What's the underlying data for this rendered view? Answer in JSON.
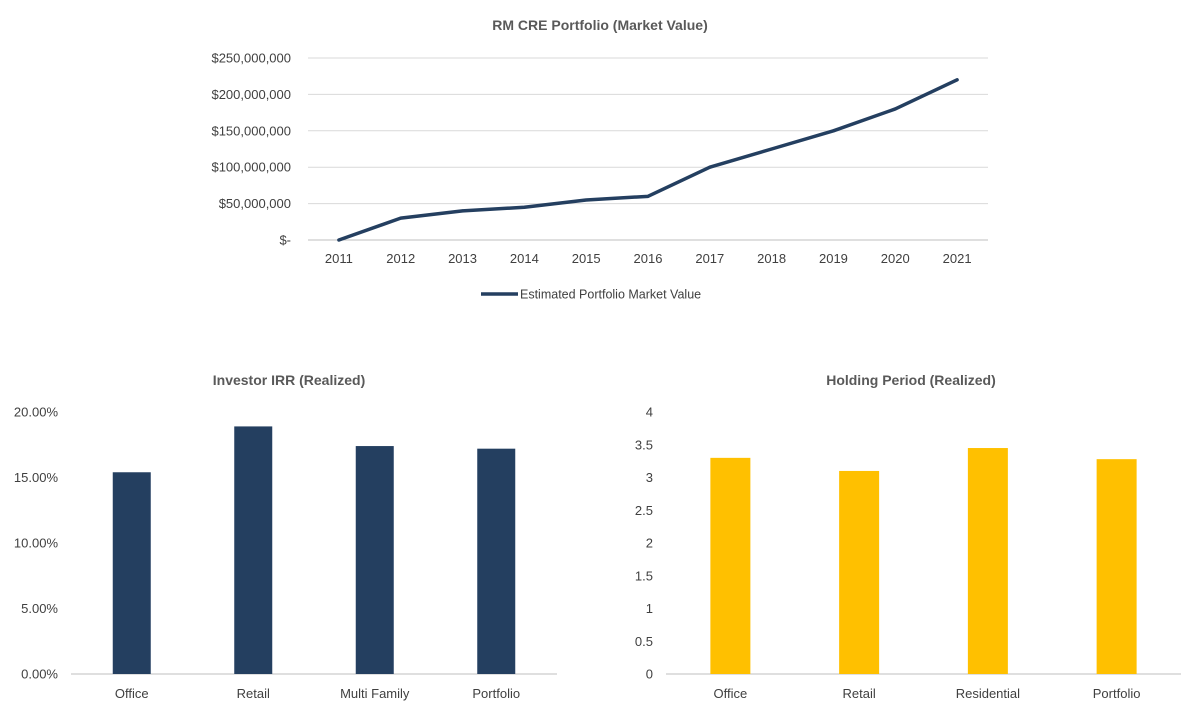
{
  "chart_data": [
    {
      "type": "line",
      "title": "RM CRE Portfolio (Market Value)",
      "x": [
        "2011",
        "2012",
        "2013",
        "2014",
        "2015",
        "2016",
        "2017",
        "2018",
        "2019",
        "2020",
        "2021"
      ],
      "series": [
        {
          "name": "Estimated Portfolio Market Value",
          "color": "#243F60",
          "values": [
            0,
            30000000,
            40000000,
            45000000,
            55000000,
            60000000,
            100000000,
            125000000,
            150000000,
            180000000,
            220000000
          ]
        }
      ],
      "ylim": [
        0,
        250000000
      ],
      "yticks": [
        0,
        50000000,
        100000000,
        150000000,
        200000000,
        250000000
      ],
      "ytick_labels": [
        "$-",
        "$50,000,000",
        "$100,000,000",
        "$150,000,000",
        "$200,000,000",
        "$250,000,000"
      ],
      "grid": true,
      "legend": "bottom"
    },
    {
      "type": "bar",
      "title": "Investor IRR (Realized)",
      "categories": [
        "Office",
        "Retail",
        "Multi Family",
        "Portfolio"
      ],
      "values": [
        15.4,
        18.9,
        17.4,
        17.2
      ],
      "color": "#243F60",
      "ylim": [
        0,
        20
      ],
      "yticks": [
        0,
        5,
        10,
        15,
        20
      ],
      "ytick_labels": [
        "0.00%",
        "5.00%",
        "10.00%",
        "15.00%",
        "20.00%"
      ],
      "unit": "%",
      "grid": false
    },
    {
      "type": "bar",
      "title": "Holding Period (Realized)",
      "categories": [
        "Office",
        "Retail",
        "Residential",
        "Portfolio"
      ],
      "values": [
        3.3,
        3.1,
        3.45,
        3.28
      ],
      "color": "#FFC000",
      "ylim": [
        0,
        4
      ],
      "yticks": [
        0,
        0.5,
        1,
        1.5,
        2,
        2.5,
        3,
        3.5,
        4
      ],
      "ytick_labels": [
        "0",
        "0.5",
        "1",
        "1.5",
        "2",
        "2.5",
        "3",
        "3.5",
        "4"
      ],
      "grid": false
    }
  ]
}
